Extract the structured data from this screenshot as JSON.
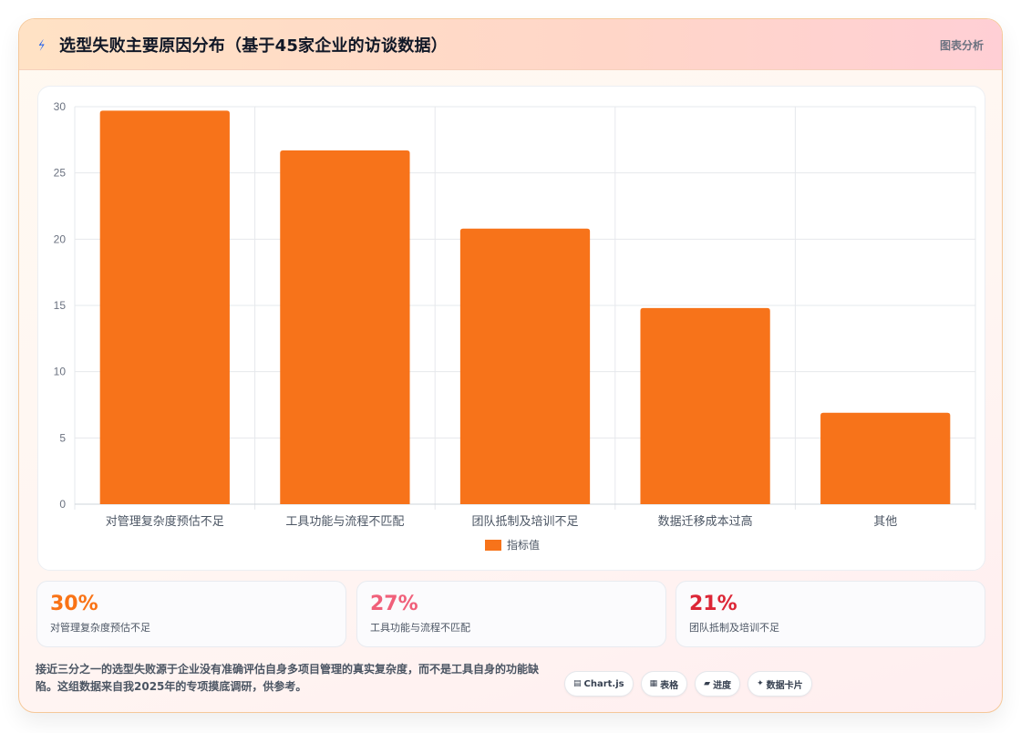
{
  "header": {
    "icon": "lightning-icon",
    "title": "选型失败主要原因分布（基于45家企业的访谈数据）",
    "tag": "图表分析"
  },
  "colors": {
    "bar": "#f7731a",
    "stat1": "#f97316",
    "stat2": "#f0607a",
    "stat3": "#dc2636"
  },
  "chart_data": {
    "type": "bar",
    "categories": [
      "对管理复杂度预估不足",
      "工具功能与流程不匹配",
      "团队抵制及培训不足",
      "数据迁移成本过高",
      "其他"
    ],
    "series": [
      {
        "name": "指标值",
        "values": [
          29.7,
          26.7,
          20.8,
          14.8,
          6.9
        ]
      }
    ],
    "ylim": [
      0,
      30
    ],
    "yticks": [
      0,
      5,
      10,
      15,
      20,
      25,
      30
    ],
    "grid": true,
    "legend": "bottom"
  },
  "stats": [
    {
      "value": "30%",
      "label": "对管理复杂度预估不足"
    },
    {
      "value": "27%",
      "label": "工具功能与流程不匹配"
    },
    {
      "value": "21%",
      "label": "团队抵制及培训不足"
    }
  ],
  "footer": {
    "text": "接近三分之一的选型失败源于企业没有准确评估自身多项目管理的真实复杂度，而不是工具自身的功能缺陷。这组数据来自我2025年的专项摸底调研，供参考。",
    "chips": [
      {
        "icon": "chart-icon",
        "glyph": "▤",
        "label": "Chart.js"
      },
      {
        "icon": "table-icon",
        "glyph": "▦",
        "label": "表格"
      },
      {
        "icon": "progress-icon",
        "glyph": "▰",
        "label": "进度"
      },
      {
        "icon": "sparkle-icon",
        "glyph": "✦",
        "label": "数据卡片"
      }
    ]
  }
}
